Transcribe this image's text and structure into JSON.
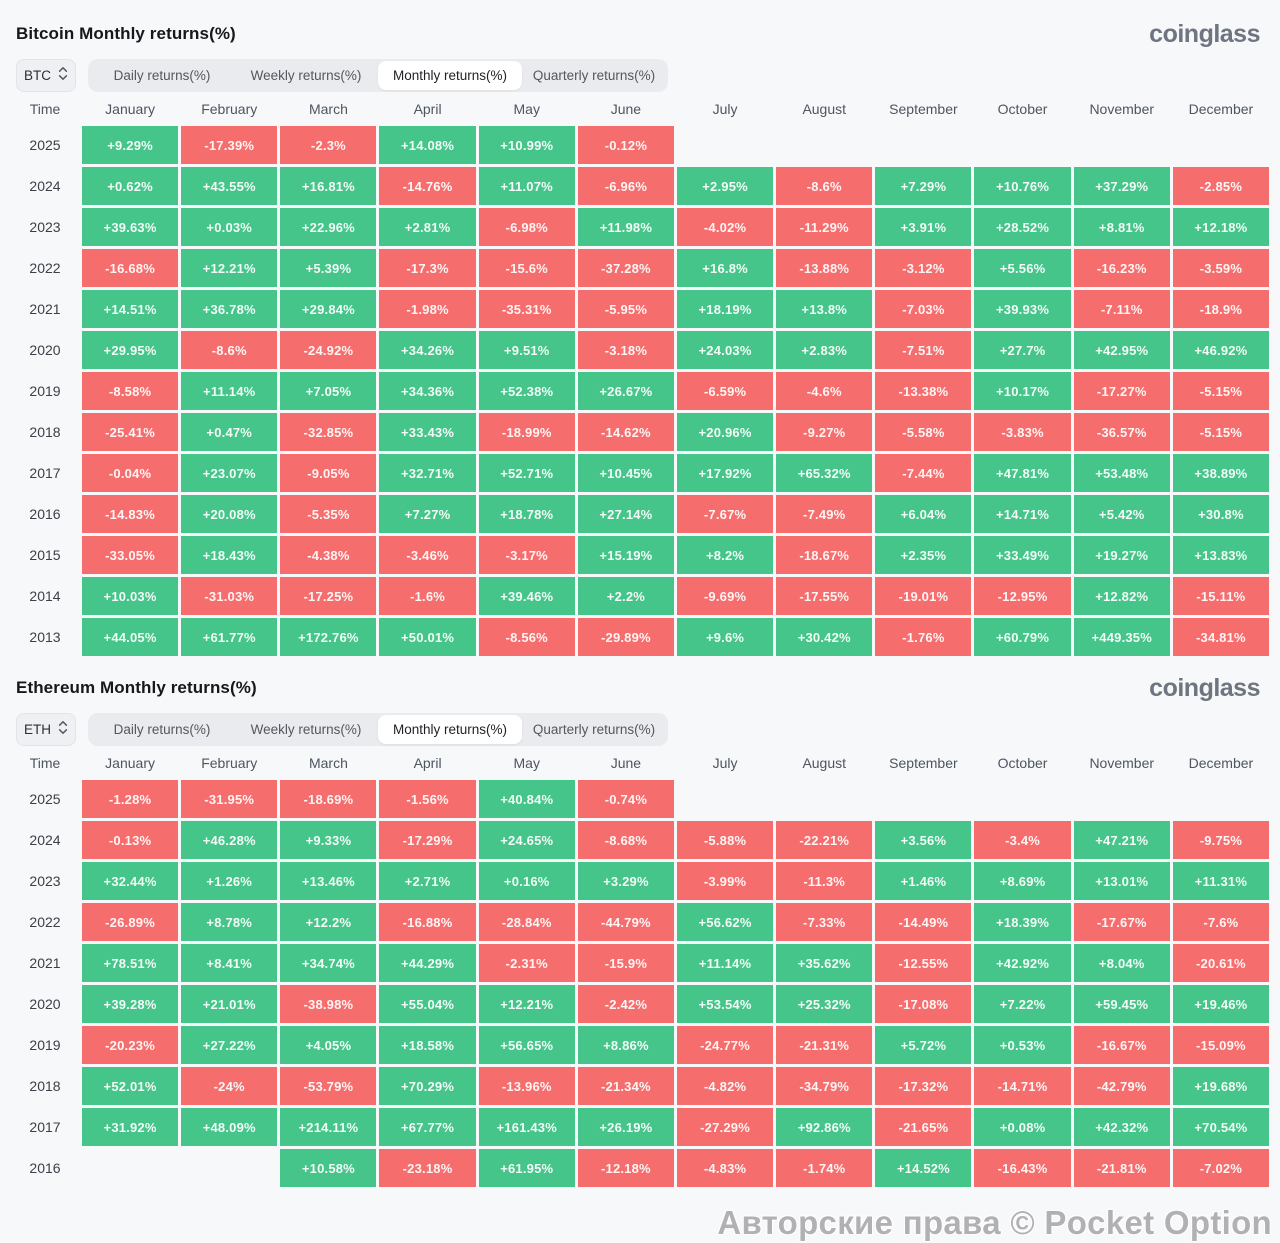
{
  "logo_text": "coinglass",
  "time_label": "Time",
  "watermark": "Авторские права © Pocket Option",
  "months": [
    "January",
    "February",
    "March",
    "April",
    "May",
    "June",
    "July",
    "August",
    "September",
    "October",
    "November",
    "December"
  ],
  "controls": {
    "tabs": [
      "Daily returns(%)",
      "Weekly returns(%)",
      "Monthly returns(%)",
      "Quarterly returns(%)"
    ],
    "active_tab": "Monthly returns(%)"
  },
  "colors": {
    "green": "#45c58a",
    "red": "#f66d6d"
  },
  "chart_data": [
    {
      "type": "heatmap",
      "title": "Bitcoin Monthly returns(%)",
      "symbol": "BTC",
      "columns": [
        "January",
        "February",
        "March",
        "April",
        "May",
        "June",
        "July",
        "August",
        "September",
        "October",
        "November",
        "December"
      ],
      "rows": [
        {
          "year": "2025",
          "values": [
            "+9.29%",
            "-17.39%",
            "-2.3%",
            "+14.08%",
            "+10.99%",
            "-0.12%",
            null,
            null,
            null,
            null,
            null,
            null
          ]
        },
        {
          "year": "2024",
          "values": [
            "+0.62%",
            "+43.55%",
            "+16.81%",
            "-14.76%",
            "+11.07%",
            "-6.96%",
            "+2.95%",
            "-8.6%",
            "+7.29%",
            "+10.76%",
            "+37.29%",
            "-2.85%"
          ]
        },
        {
          "year": "2023",
          "values": [
            "+39.63%",
            "+0.03%",
            "+22.96%",
            "+2.81%",
            "-6.98%",
            "+11.98%",
            "-4.02%",
            "-11.29%",
            "+3.91%",
            "+28.52%",
            "+8.81%",
            "+12.18%"
          ]
        },
        {
          "year": "2022",
          "values": [
            "-16.68%",
            "+12.21%",
            "+5.39%",
            "-17.3%",
            "-15.6%",
            "-37.28%",
            "+16.8%",
            "-13.88%",
            "-3.12%",
            "+5.56%",
            "-16.23%",
            "-3.59%"
          ]
        },
        {
          "year": "2021",
          "values": [
            "+14.51%",
            "+36.78%",
            "+29.84%",
            "-1.98%",
            "-35.31%",
            "-5.95%",
            "+18.19%",
            "+13.8%",
            "-7.03%",
            "+39.93%",
            "-7.11%",
            "-18.9%"
          ]
        },
        {
          "year": "2020",
          "values": [
            "+29.95%",
            "-8.6%",
            "-24.92%",
            "+34.26%",
            "+9.51%",
            "-3.18%",
            "+24.03%",
            "+2.83%",
            "-7.51%",
            "+27.7%",
            "+42.95%",
            "+46.92%"
          ]
        },
        {
          "year": "2019",
          "values": [
            "-8.58%",
            "+11.14%",
            "+7.05%",
            "+34.36%",
            "+52.38%",
            "+26.67%",
            "-6.59%",
            "-4.6%",
            "-13.38%",
            "+10.17%",
            "-17.27%",
            "-5.15%"
          ]
        },
        {
          "year": "2018",
          "values": [
            "-25.41%",
            "+0.47%",
            "-32.85%",
            "+33.43%",
            "-18.99%",
            "-14.62%",
            "+20.96%",
            "-9.27%",
            "-5.58%",
            "-3.83%",
            "-36.57%",
            "-5.15%"
          ]
        },
        {
          "year": "2017",
          "values": [
            "-0.04%",
            "+23.07%",
            "-9.05%",
            "+32.71%",
            "+52.71%",
            "+10.45%",
            "+17.92%",
            "+65.32%",
            "-7.44%",
            "+47.81%",
            "+53.48%",
            "+38.89%"
          ]
        },
        {
          "year": "2016",
          "values": [
            "-14.83%",
            "+20.08%",
            "-5.35%",
            "+7.27%",
            "+18.78%",
            "+27.14%",
            "-7.67%",
            "-7.49%",
            "+6.04%",
            "+14.71%",
            "+5.42%",
            "+30.8%"
          ]
        },
        {
          "year": "2015",
          "values": [
            "-33.05%",
            "+18.43%",
            "-4.38%",
            "-3.46%",
            "-3.17%",
            "+15.19%",
            "+8.2%",
            "-18.67%",
            "+2.35%",
            "+33.49%",
            "+19.27%",
            "+13.83%"
          ]
        },
        {
          "year": "2014",
          "values": [
            "+10.03%",
            "-31.03%",
            "-17.25%",
            "-1.6%",
            "+39.46%",
            "+2.2%",
            "-9.69%",
            "-17.55%",
            "-19.01%",
            "-12.95%",
            "+12.82%",
            "-15.11%"
          ]
        },
        {
          "year": "2013",
          "values": [
            "+44.05%",
            "+61.77%",
            "+172.76%",
            "+50.01%",
            "-8.56%",
            "-29.89%",
            "+9.6%",
            "+30.42%",
            "-1.76%",
            "+60.79%",
            "+449.35%",
            "-34.81%"
          ]
        }
      ]
    },
    {
      "type": "heatmap",
      "title": "Ethereum Monthly returns(%)",
      "symbol": "ETH",
      "columns": [
        "January",
        "February",
        "March",
        "April",
        "May",
        "June",
        "July",
        "August",
        "September",
        "October",
        "November",
        "December"
      ],
      "rows": [
        {
          "year": "2025",
          "values": [
            "-1.28%",
            "-31.95%",
            "-18.69%",
            "-1.56%",
            "+40.84%",
            "-0.74%",
            null,
            null,
            null,
            null,
            null,
            null
          ]
        },
        {
          "year": "2024",
          "values": [
            "-0.13%",
            "+46.28%",
            "+9.33%",
            "-17.29%",
            "+24.65%",
            "-8.68%",
            "-5.88%",
            "-22.21%",
            "+3.56%",
            "-3.4%",
            "+47.21%",
            "-9.75%"
          ]
        },
        {
          "year": "2023",
          "values": [
            "+32.44%",
            "+1.26%",
            "+13.46%",
            "+2.71%",
            "+0.16%",
            "+3.29%",
            "-3.99%",
            "-11.3%",
            "+1.46%",
            "+8.69%",
            "+13.01%",
            "+11.31%"
          ]
        },
        {
          "year": "2022",
          "values": [
            "-26.89%",
            "+8.78%",
            "+12.2%",
            "-16.88%",
            "-28.84%",
            "-44.79%",
            "+56.62%",
            "-7.33%",
            "-14.49%",
            "+18.39%",
            "-17.67%",
            "-7.6%"
          ]
        },
        {
          "year": "2021",
          "values": [
            "+78.51%",
            "+8.41%",
            "+34.74%",
            "+44.29%",
            "-2.31%",
            "-15.9%",
            "+11.14%",
            "+35.62%",
            "-12.55%",
            "+42.92%",
            "+8.04%",
            "-20.61%"
          ]
        },
        {
          "year": "2020",
          "values": [
            "+39.28%",
            "+21.01%",
            "-38.98%",
            "+55.04%",
            "+12.21%",
            "-2.42%",
            "+53.54%",
            "+25.32%",
            "-17.08%",
            "+7.22%",
            "+59.45%",
            "+19.46%"
          ]
        },
        {
          "year": "2019",
          "values": [
            "-20.23%",
            "+27.22%",
            "+4.05%",
            "+18.58%",
            "+56.65%",
            "+8.86%",
            "-24.77%",
            "-21.31%",
            "+5.72%",
            "+0.53%",
            "-16.67%",
            "-15.09%"
          ]
        },
        {
          "year": "2018",
          "values": [
            "+52.01%",
            "-24%",
            "-53.79%",
            "+70.29%",
            "-13.96%",
            "-21.34%",
            "-4.82%",
            "-34.79%",
            "-17.32%",
            "-14.71%",
            "-42.79%",
            "+19.68%"
          ]
        },
        {
          "year": "2017",
          "values": [
            "+31.92%",
            "+48.09%",
            "+214.11%",
            "+67.77%",
            "+161.43%",
            "+26.19%",
            "-27.29%",
            "+92.86%",
            "-21.65%",
            "+0.08%",
            "+42.32%",
            "+70.54%"
          ]
        },
        {
          "year": "2016",
          "values": [
            null,
            null,
            "+10.58%",
            "-23.18%",
            "+61.95%",
            "-12.18%",
            "-4.83%",
            "-1.74%",
            "+14.52%",
            "-16.43%",
            "-21.81%",
            "-7.02%"
          ]
        }
      ]
    }
  ]
}
